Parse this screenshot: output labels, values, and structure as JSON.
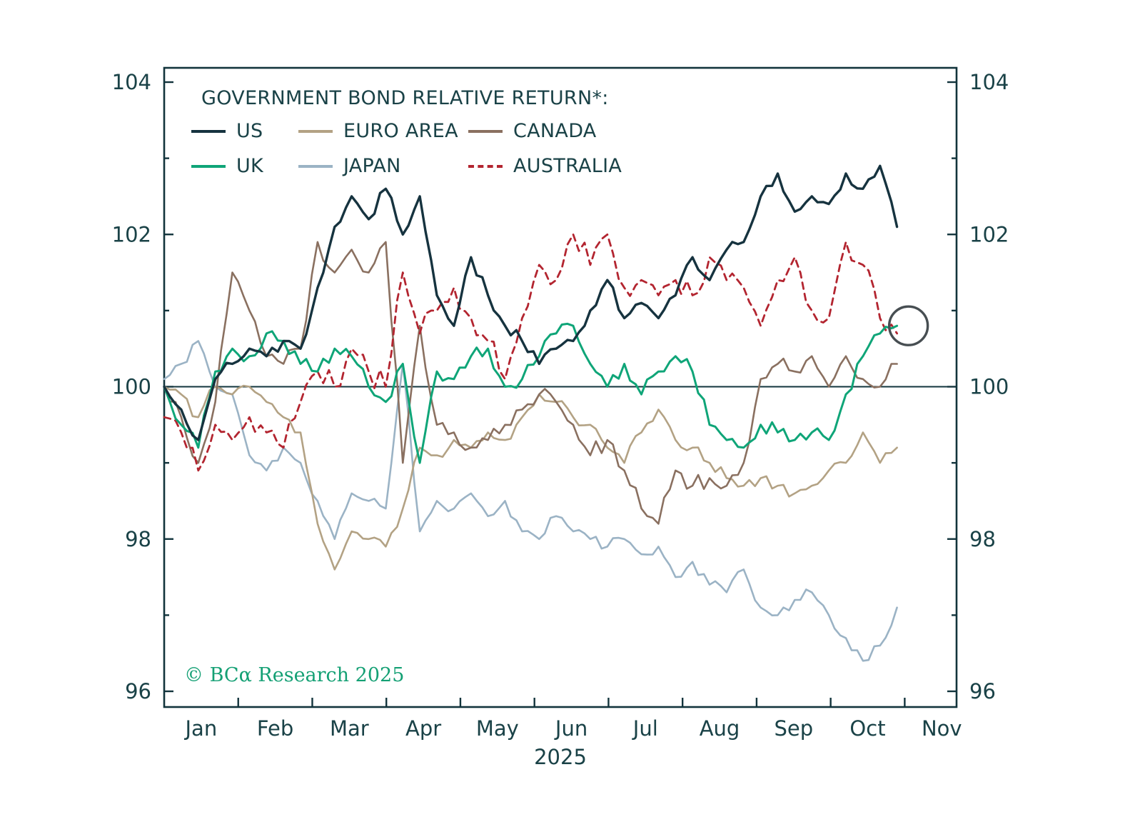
{
  "title": "GOVERNMENT BOND RELATIVE RETURN*:",
  "watermark": {
    "copyright": "© BC",
    "alpha": "α",
    "text": " Research ",
    "year": "2025"
  },
  "x_axis": {
    "month_labels": [
      "Jan",
      "Feb",
      "Mar",
      "Apr",
      "May",
      "Jun",
      "Jul",
      "Aug",
      "Sep",
      "Oct",
      "Nov"
    ],
    "year_label": "2025"
  },
  "y_axis": {
    "ticks": [
      96,
      98,
      100,
      102,
      104
    ],
    "min": 95.8,
    "max": 104.2
  },
  "colors": {
    "axis": "#12343c",
    "text": "#1a4247",
    "baseline": "#12343c",
    "annotation": "#474e52",
    "watermark_green": "#14a074"
  },
  "chart_data": {
    "type": "line",
    "title": "GOVERNMENT BOND RELATIVE RETURN*:",
    "x_unit": "weeks since start of Jan 2025",
    "x_range_months": [
      "Jan 2025",
      "Nov 2025"
    ],
    "ylim": [
      95.8,
      104.2
    ],
    "grid": false,
    "legend_position": "top-left inside",
    "baseline": 100,
    "x_weeks": [
      0,
      1,
      2,
      3,
      4,
      5,
      6,
      7,
      8,
      9,
      10,
      11,
      12,
      13,
      14,
      15,
      16,
      17,
      18,
      19,
      20,
      21,
      22,
      23,
      24,
      25,
      26,
      27,
      28,
      29,
      30,
      31,
      32,
      33,
      34,
      35,
      36,
      37,
      38,
      39,
      40,
      41,
      42,
      43
    ],
    "series": [
      {
        "name": "US",
        "color": "#16333f",
        "style": "solid",
        "values": [
          100.0,
          99.7,
          99.3,
          100.1,
          100.3,
          100.5,
          100.4,
          100.6,
          100.5,
          101.3,
          102.1,
          102.5,
          102.2,
          102.6,
          102.0,
          102.5,
          101.2,
          100.8,
          101.7,
          101.2,
          100.8,
          100.6,
          100.3,
          100.5,
          100.6,
          101.0,
          101.4,
          100.9,
          101.1,
          100.9,
          101.2,
          101.7,
          101.4,
          101.8,
          101.9,
          102.5,
          102.8,
          102.3,
          102.5,
          102.4,
          102.8,
          102.6,
          102.9,
          102.1
        ]
      },
      {
        "name": "EURO AREA",
        "color": "#b3a284",
        "style": "solid",
        "values": [
          100.0,
          99.9,
          99.6,
          100.0,
          99.9,
          100.0,
          99.8,
          99.6,
          99.4,
          98.2,
          97.6,
          98.1,
          98.0,
          97.9,
          98.4,
          99.2,
          99.1,
          99.3,
          99.2,
          99.4,
          99.3,
          99.6,
          99.9,
          99.8,
          99.6,
          99.5,
          99.2,
          99.0,
          99.4,
          99.7,
          99.3,
          99.2,
          99.0,
          98.8,
          98.7,
          98.8,
          98.7,
          98.6,
          98.7,
          98.9,
          99.0,
          99.4,
          99.0,
          99.2
        ]
      },
      {
        "name": "CANADA",
        "color": "#8a7060",
        "style": "solid",
        "values": [
          100.0,
          99.6,
          99.0,
          99.8,
          101.5,
          101.0,
          100.4,
          100.3,
          100.5,
          101.9,
          101.5,
          101.8,
          101.5,
          101.9,
          99.0,
          100.8,
          99.5,
          99.4,
          99.2,
          99.3,
          99.5,
          99.7,
          99.9,
          99.8,
          99.5,
          99.1,
          99.3,
          98.9,
          98.4,
          98.2,
          98.9,
          98.7,
          98.8,
          98.7,
          99.0,
          100.1,
          100.3,
          100.2,
          100.4,
          100.0,
          100.4,
          100.1,
          100.0,
          100.3
        ]
      },
      {
        "name": "UK",
        "color": "#0fa578",
        "style": "solid",
        "values": [
          100.0,
          99.5,
          99.2,
          100.2,
          100.5,
          100.4,
          100.7,
          100.6,
          100.3,
          100.2,
          100.5,
          100.4,
          100.0,
          99.8,
          100.3,
          99.0,
          100.2,
          100.1,
          100.4,
          100.5,
          100.0,
          100.1,
          100.4,
          100.7,
          100.8,
          100.3,
          100.0,
          100.3,
          99.9,
          100.2,
          100.4,
          100.2,
          99.5,
          99.3,
          99.2,
          99.5,
          99.4,
          99.3,
          99.4,
          99.3,
          99.9,
          100.4,
          100.7,
          100.8
        ]
      },
      {
        "name": "JAPAN",
        "color": "#9bb3c5",
        "style": "solid",
        "values": [
          100.1,
          100.3,
          100.6,
          100.0,
          99.9,
          99.1,
          98.9,
          99.2,
          99.0,
          98.5,
          98.0,
          98.6,
          98.5,
          98.4,
          100.3,
          98.1,
          98.5,
          98.4,
          98.6,
          98.3,
          98.5,
          98.1,
          98.0,
          98.3,
          98.1,
          98.0,
          97.9,
          98.0,
          97.8,
          97.9,
          97.5,
          97.7,
          97.4,
          97.3,
          97.6,
          97.1,
          97.0,
          97.2,
          97.3,
          97.0,
          96.7,
          96.4,
          96.6,
          97.1
        ]
      },
      {
        "name": "AUSTRALIA",
        "color": "#b32530",
        "style": "dashed",
        "values": [
          99.6,
          99.4,
          98.9,
          99.5,
          99.3,
          99.6,
          99.4,
          99.2,
          99.8,
          100.2,
          100.0,
          100.5,
          100.2,
          100.0,
          101.5,
          100.7,
          101.0,
          101.3,
          100.9,
          100.6,
          100.1,
          100.9,
          101.6,
          101.4,
          102.0,
          101.6,
          102.0,
          101.3,
          101.4,
          101.2,
          101.4,
          101.2,
          101.7,
          101.4,
          101.3,
          100.8,
          101.4,
          101.7,
          101.0,
          100.9,
          101.9,
          101.6,
          100.9,
          100.7
        ]
      }
    ],
    "annotation_circle": {
      "series": "UK",
      "x_week": 43,
      "y": 100.8
    }
  }
}
